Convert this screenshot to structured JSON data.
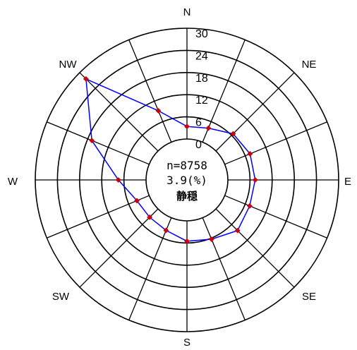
{
  "chart_data": {
    "type": "polar-line",
    "title": "",
    "directions": [
      "N",
      "NNE",
      "NE",
      "ENE",
      "E",
      "ESE",
      "SE",
      "SSE",
      "S",
      "SSW",
      "SW",
      "WSW",
      "W",
      "WNW",
      "NW",
      "NNW"
    ],
    "compass_labels": {
      "N": "N",
      "NE": "NE",
      "E": "E",
      "SE": "SE",
      "S": "S",
      "SW": "SW",
      "W": "W",
      "NW": "NW"
    },
    "radial_ticks": [
      0,
      6,
      12,
      18,
      24,
      30
    ],
    "rlim": [
      0,
      30
    ],
    "values": [
      3.4,
      4.1,
      6.6,
      7.4,
      7.4,
      7.3,
      8.3,
      6.3,
      5.5,
      3.7,
      3.2,
      3.6,
      7.5,
      16.8,
      27.6,
      9.2
    ],
    "line_color": "#0000ff",
    "marker_color": "#cc0000",
    "center_text": {
      "n": "n=8758",
      "calm_pct": "3.9(%)",
      "calm_label": "静穏"
    }
  }
}
